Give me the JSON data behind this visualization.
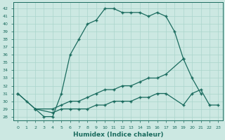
{
  "xlabel": "Humidex (Indice chaleur)",
  "background_color": "#cce8e2",
  "grid_color": "#aad4cc",
  "line_color": "#1a6b5e",
  "xlim": [
    -0.5,
    23.5
  ],
  "ylim": [
    27.5,
    42.8
  ],
  "yticks": [
    28,
    29,
    30,
    31,
    32,
    33,
    34,
    35,
    36,
    37,
    38,
    39,
    40,
    41,
    42
  ],
  "xticks": [
    0,
    1,
    2,
    3,
    4,
    5,
    6,
    7,
    8,
    9,
    10,
    11,
    12,
    13,
    14,
    15,
    16,
    17,
    18,
    19,
    20,
    21,
    22,
    23
  ],
  "curve1_x": [
    0,
    1,
    2,
    3,
    4,
    5,
    6,
    7,
    8,
    9,
    10,
    11,
    12,
    13,
    14,
    15,
    16,
    17,
    18,
    19
  ],
  "curve1_y": [
    31,
    30,
    29,
    28,
    28,
    31,
    36,
    38,
    40,
    40.5,
    42,
    42,
    41.5,
    41.5,
    41.5,
    41,
    41.5,
    41,
    39,
    35.5
  ],
  "curve2_x": [
    0,
    2,
    4,
    5,
    6,
    7,
    8,
    9,
    10,
    11,
    12,
    13,
    14,
    15,
    16,
    17,
    19,
    20,
    21
  ],
  "curve2_y": [
    31,
    29,
    29,
    29.5,
    30,
    30,
    30.5,
    31,
    31.5,
    31.5,
    32,
    32,
    32.5,
    33,
    33,
    33.5,
    35.5,
    33,
    31
  ],
  "curve3_x": [
    2,
    4,
    5,
    6,
    7,
    8,
    9,
    10,
    11,
    12,
    13,
    14,
    15,
    16,
    17,
    19,
    20,
    21,
    22,
    23
  ],
  "curve3_y": [
    29,
    28.5,
    29,
    29,
    29,
    29,
    29.5,
    29.5,
    30,
    30,
    30,
    30.5,
    30.5,
    31,
    31,
    29.5,
    31,
    31.5,
    29.5,
    29.5
  ]
}
